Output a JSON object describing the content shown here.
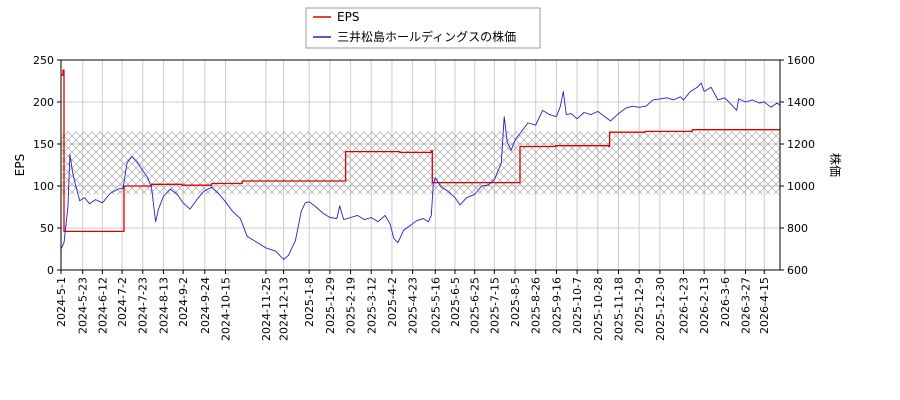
{
  "chart_data": {
    "type": "line",
    "legend": {
      "placement": "top-center",
      "entries": [
        {
          "label": "EPS",
          "color": "#dd0000"
        },
        {
          "label": "三井松島ホールディングスの株価",
          "color": "#2222cc"
        }
      ]
    },
    "y_left": {
      "label": "EPS",
      "lim": [
        0,
        250
      ],
      "ticks": [
        0,
        50,
        100,
        150,
        200,
        250
      ]
    },
    "y_right": {
      "label": "株価",
      "lim": [
        600,
        1600
      ],
      "ticks": [
        600,
        800,
        1000,
        1200,
        1400,
        1600
      ]
    },
    "x": {
      "range": [
        "2024-05-01",
        "2026-05-01"
      ],
      "tick_labels": [
        "2024-5-1",
        "2024-5-23",
        "2024-6-12",
        "2024-7-2",
        "2024-7-23",
        "2024-8-13",
        "2024-9-2",
        "2024-9-24",
        "2024-10-15",
        "2024-11-25",
        "2024-12-13",
        "2025-1-8",
        "2025-1-29",
        "2025-2-19",
        "2025-3-12",
        "2025-4-2",
        "2025-4-23",
        "2025-5-16",
        "2025-6-5",
        "2025-6-25",
        "2025-7-15",
        "2025-8-5",
        "2025-8-26",
        "2025-9-16",
        "2025-10-7",
        "2025-10-28",
        "2025-11-18",
        "2025-12-9",
        "2025-12-30",
        "2026-1-23",
        "2026-2-13",
        "2026-3-6",
        "2026-3-27",
        "2026-4-15"
      ]
    },
    "grid": true,
    "band": {
      "axis": "right",
      "range": [
        960,
        1260
      ],
      "pattern": "crosshatch",
      "color": "#aaaaaa"
    },
    "series": [
      {
        "name": "EPS",
        "axis": "left",
        "color": "#dd0000",
        "step": true,
        "points": [
          [
            "2024-05-01",
            232
          ],
          [
            "2024-05-03",
            238
          ],
          [
            "2024-05-04",
            46
          ],
          [
            "2024-07-03",
            46
          ],
          [
            "2024-07-04",
            100
          ],
          [
            "2024-08-01",
            102
          ],
          [
            "2024-09-01",
            101
          ],
          [
            "2024-10-01",
            103
          ],
          [
            "2024-11-01",
            106
          ],
          [
            "2024-12-01",
            106
          ],
          [
            "2025-02-13",
            106
          ],
          [
            "2025-02-14",
            141
          ],
          [
            "2025-03-15",
            141
          ],
          [
            "2025-04-10",
            140
          ],
          [
            "2025-05-12",
            142
          ],
          [
            "2025-05-13",
            104
          ],
          [
            "2025-06-15",
            104
          ],
          [
            "2025-08-09",
            104
          ],
          [
            "2025-08-10",
            147
          ],
          [
            "2025-09-15",
            148
          ],
          [
            "2025-10-25",
            148
          ],
          [
            "2025-11-08",
            147
          ],
          [
            "2025-11-09",
            164
          ],
          [
            "2025-12-15",
            165
          ],
          [
            "2026-02-01",
            167
          ],
          [
            "2026-03-15",
            167
          ],
          [
            "2026-05-01",
            169
          ]
        ]
      },
      {
        "name": "三井松島ホールディングスの株価",
        "axis": "right",
        "color": "#2222cc",
        "step": false,
        "points": [
          [
            "2024-05-01",
            700
          ],
          [
            "2024-05-04",
            730
          ],
          [
            "2024-05-08",
            900
          ],
          [
            "2024-05-10",
            1150
          ],
          [
            "2024-05-13",
            1060
          ],
          [
            "2024-05-16",
            1000
          ],
          [
            "2024-05-20",
            930
          ],
          [
            "2024-05-25",
            945
          ],
          [
            "2024-05-30",
            915
          ],
          [
            "2024-06-05",
            935
          ],
          [
            "2024-06-12",
            920
          ],
          [
            "2024-06-20",
            965
          ],
          [
            "2024-06-28",
            985
          ],
          [
            "2024-07-03",
            990
          ],
          [
            "2024-07-07",
            1110
          ],
          [
            "2024-07-12",
            1140
          ],
          [
            "2024-07-17",
            1115
          ],
          [
            "2024-07-22",
            1080
          ],
          [
            "2024-07-28",
            1040
          ],
          [
            "2024-08-01",
            990
          ],
          [
            "2024-08-05",
            830
          ],
          [
            "2024-08-08",
            890
          ],
          [
            "2024-08-13",
            950
          ],
          [
            "2024-08-20",
            985
          ],
          [
            "2024-08-27",
            960
          ],
          [
            "2024-09-02",
            920
          ],
          [
            "2024-09-09",
            890
          ],
          [
            "2024-09-16",
            935
          ],
          [
            "2024-09-23",
            975
          ],
          [
            "2024-10-01",
            995
          ],
          [
            "2024-10-08",
            965
          ],
          [
            "2024-10-15",
            925
          ],
          [
            "2024-10-22",
            880
          ],
          [
            "2024-10-30",
            845
          ],
          [
            "2024-11-06",
            760
          ],
          [
            "2024-11-15",
            735
          ],
          [
            "2024-11-25",
            705
          ],
          [
            "2024-12-05",
            690
          ],
          [
            "2024-12-13",
            650
          ],
          [
            "2024-12-18",
            670
          ],
          [
            "2024-12-25",
            740
          ],
          [
            "2024-12-31",
            880
          ],
          [
            "2025-01-04",
            920
          ],
          [
            "2025-01-08",
            925
          ],
          [
            "2025-01-15",
            900
          ],
          [
            "2025-01-22",
            870
          ],
          [
            "2025-01-29",
            850
          ],
          [
            "2025-02-05",
            845
          ],
          [
            "2025-02-08",
            905
          ],
          [
            "2025-02-12",
            840
          ],
          [
            "2025-02-19",
            850
          ],
          [
            "2025-02-26",
            860
          ],
          [
            "2025-03-05",
            840
          ],
          [
            "2025-03-12",
            850
          ],
          [
            "2025-03-19",
            830
          ],
          [
            "2025-03-26",
            860
          ],
          [
            "2025-03-31",
            820
          ],
          [
            "2025-04-04",
            750
          ],
          [
            "2025-04-08",
            730
          ],
          [
            "2025-04-14",
            790
          ],
          [
            "2025-04-20",
            810
          ],
          [
            "2025-04-27",
            835
          ],
          [
            "2025-05-04",
            845
          ],
          [
            "2025-05-09",
            830
          ],
          [
            "2025-05-12",
            860
          ],
          [
            "2025-05-14",
            1010
          ],
          [
            "2025-05-16",
            1040
          ],
          [
            "2025-05-22",
            995
          ],
          [
            "2025-05-29",
            975
          ],
          [
            "2025-06-05",
            945
          ],
          [
            "2025-06-10",
            910
          ],
          [
            "2025-06-17",
            945
          ],
          [
            "2025-06-25",
            960
          ],
          [
            "2025-07-02",
            1000
          ],
          [
            "2025-07-09",
            1005
          ],
          [
            "2025-07-15",
            1030
          ],
          [
            "2025-07-22",
            1110
          ],
          [
            "2025-07-25",
            1330
          ],
          [
            "2025-07-28",
            1210
          ],
          [
            "2025-08-01",
            1170
          ],
          [
            "2025-08-05",
            1220
          ],
          [
            "2025-08-10",
            1250
          ],
          [
            "2025-08-18",
            1300
          ],
          [
            "2025-08-26",
            1290
          ],
          [
            "2025-09-02",
            1360
          ],
          [
            "2025-09-09",
            1340
          ],
          [
            "2025-09-16",
            1330
          ],
          [
            "2025-09-20",
            1380
          ],
          [
            "2025-09-23",
            1450
          ],
          [
            "2025-09-26",
            1340
          ],
          [
            "2025-10-01",
            1345
          ],
          [
            "2025-10-07",
            1320
          ],
          [
            "2025-10-14",
            1350
          ],
          [
            "2025-10-21",
            1340
          ],
          [
            "2025-10-28",
            1355
          ],
          [
            "2025-11-04",
            1330
          ],
          [
            "2025-11-10",
            1310
          ],
          [
            "2025-11-18",
            1345
          ],
          [
            "2025-11-25",
            1370
          ],
          [
            "2025-12-02",
            1380
          ],
          [
            "2025-12-09",
            1375
          ],
          [
            "2025-12-16",
            1380
          ],
          [
            "2025-12-23",
            1410
          ],
          [
            "2025-12-30",
            1415
          ],
          [
            "2026-01-06",
            1420
          ],
          [
            "2026-01-13",
            1410
          ],
          [
            "2026-01-20",
            1425
          ],
          [
            "2026-01-23",
            1410
          ],
          [
            "2026-01-30",
            1450
          ],
          [
            "2026-02-06",
            1470
          ],
          [
            "2026-02-10",
            1490
          ],
          [
            "2026-02-13",
            1450
          ],
          [
            "2026-02-20",
            1470
          ],
          [
            "2026-02-27",
            1410
          ],
          [
            "2026-03-06",
            1420
          ],
          [
            "2026-03-12",
            1390
          ],
          [
            "2026-03-18",
            1360
          ],
          [
            "2026-03-20",
            1415
          ],
          [
            "2026-03-27",
            1400
          ],
          [
            "2026-04-03",
            1410
          ],
          [
            "2026-04-10",
            1395
          ],
          [
            "2026-04-15",
            1400
          ],
          [
            "2026-04-22",
            1375
          ],
          [
            "2026-04-28",
            1395
          ],
          [
            "2026-05-01",
            1385
          ]
        ]
      }
    ]
  }
}
